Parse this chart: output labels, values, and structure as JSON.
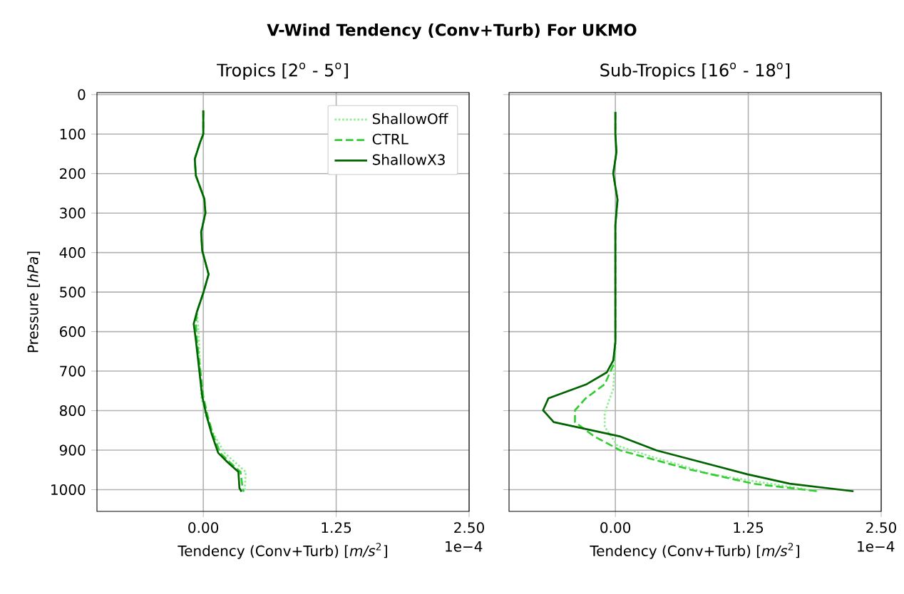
{
  "chart_data": [
    {
      "type": "line",
      "title": "Tropics [2$^{o}$ - 5$^{o}$]",
      "xlabel": "Tendency (Conv+Turb) [*m/s*$^{2}$]",
      "ylabel": "Pressure [*hPa*]",
      "annotations": [
        "V-Wind Tendency (Conv+Turb) For UKMO",
        "1e−4"
      ],
      "xlim": [
        -1.0,
        2.5
      ],
      "ylim": [
        1055,
        -5
      ],
      "xticks": [
        {
          "value": 0,
          "label": "0.00"
        },
        {
          "value": 1.25,
          "label": "1.25"
        },
        {
          "value": 2.5,
          "label": "2.50"
        }
      ],
      "yticks": [
        0,
        100,
        200,
        300,
        400,
        500,
        600,
        700,
        800,
        900,
        1000
      ],
      "grid": true,
      "legend": "top right",
      "series": [
        {
          "name": "ShallowOff",
          "color": "#90ee90",
          "line_style": "dotted",
          "x": [
            0,
            0,
            -0.03,
            -0.08,
            -0.07,
            0.01,
            0.02,
            -0.02,
            -0.01,
            0.05,
            0,
            -0.06,
            -0.05,
            -0.04,
            -0.03,
            -0.02,
            0.02,
            0.1,
            0.2,
            0.3,
            0.4,
            0.39,
            0.4
          ],
          "values": [
            40,
            100,
            121,
            163,
            205,
            264,
            300,
            348,
            395,
            455,
            502,
            550,
            580,
            621,
            693,
            764,
            812,
            860,
            907,
            931,
            955,
            996,
            1005
          ]
        },
        {
          "name": "CTRL",
          "color": "#32cd32",
          "line_style": "dashed",
          "x": [
            0,
            0,
            -0.03,
            -0.08,
            -0.07,
            0.01,
            0.02,
            -0.02,
            -0.01,
            0.05,
            0,
            -0.06,
            -0.07,
            -0.06,
            -0.03,
            0,
            0.04,
            0.09,
            0.16,
            0.25,
            0.35,
            0.37,
            0.38
          ],
          "values": [
            40,
            100,
            121,
            163,
            205,
            264,
            300,
            348,
            395,
            455,
            502,
            550,
            580,
            621,
            693,
            764,
            812,
            860,
            907,
            931,
            955,
            996,
            1005
          ]
        },
        {
          "name": "ShallowX3",
          "color": "#006400",
          "line_style": "solid",
          "x": [
            0,
            0,
            -0.03,
            -0.08,
            -0.07,
            0.01,
            0.02,
            -0.02,
            -0.01,
            0.05,
            0,
            -0.06,
            -0.09,
            -0.07,
            -0.04,
            -0.01,
            0.03,
            0.08,
            0.14,
            0.23,
            0.33,
            0.34,
            0.36
          ],
          "values": [
            40,
            100,
            121,
            163,
            205,
            264,
            300,
            348,
            395,
            455,
            502,
            550,
            580,
            621,
            693,
            764,
            812,
            860,
            907,
            931,
            955,
            996,
            1005
          ]
        }
      ]
    },
    {
      "type": "line",
      "title": "Sub-Tropics [16$^{o}$ - 18$^{o}$]",
      "xlabel": "Tendency (Conv+Turb) [*m/s*$^{2}$]",
      "annotations": [
        "1e−4"
      ],
      "xlim": [
        -1.0,
        2.5
      ],
      "ylim": [
        1055,
        -5
      ],
      "xticks": [
        {
          "value": 0,
          "label": "0.00"
        },
        {
          "value": 1.25,
          "label": "1.25"
        },
        {
          "value": 2.5,
          "label": "2.50"
        }
      ],
      "yticks": [
        0,
        100,
        200,
        300,
        400,
        500,
        600,
        700,
        800,
        900,
        1000
      ],
      "grid": true,
      "tick_labels": "x",
      "series": [
        {
          "color": "#90ee90",
          "line_style": "dotted",
          "x": [
            0,
            0,
            0.01,
            -0.02,
            0.02,
            0,
            0,
            -0.02,
            -0.1,
            -0.1,
            0.02,
            0.3,
            0.9,
            1.9
          ],
          "values": [
            44,
            100,
            146,
            200,
            266,
            330,
            650,
            745,
            805,
            841,
            889,
            913,
            961,
            1004
          ]
        },
        {
          "color": "#32cd32",
          "line_style": "dashed",
          "x": [
            0,
            0,
            0.01,
            -0.02,
            0.02,
            0,
            0,
            -0.02,
            -0.1,
            -0.28,
            -0.38,
            -0.38,
            -0.2,
            0.05,
            0.7,
            1.3,
            1.9
          ],
          "values": [
            44,
            100,
            146,
            200,
            266,
            330,
            626,
            685,
            733,
            769,
            799,
            829,
            865,
            901,
            949,
            985,
            1004
          ]
        },
        {
          "color": "#006400",
          "line_style": "solid",
          "x": [
            0,
            0,
            0.01,
            -0.02,
            0.02,
            0,
            0,
            -0.02,
            -0.08,
            -0.27,
            -0.63,
            -0.68,
            -0.58,
            0.04,
            0.39,
            1.24,
            1.64,
            2.24
          ],
          "values": [
            44,
            100,
            146,
            200,
            266,
            330,
            626,
            673,
            703,
            733,
            769,
            799,
            829,
            865,
            901,
            961,
            985,
            1004
          ]
        }
      ]
    }
  ]
}
